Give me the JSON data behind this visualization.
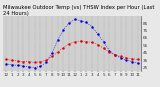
{
  "title": "Milwaukee Outdoor Temp (vs) THSW Index per Hour (Last 24 Hours)",
  "background_color": "#e8e8e8",
  "plot_bg_color": "#d0d0d0",
  "grid_color": "#888888",
  "x_hours": [
    0,
    1,
    2,
    3,
    4,
    5,
    6,
    7,
    8,
    9,
    10,
    11,
    12,
    13,
    14,
    15,
    16,
    17,
    18,
    19,
    20,
    21,
    22,
    23
  ],
  "x_labels": [
    "12",
    "1",
    "2",
    "3",
    "4",
    "5",
    "6",
    "7",
    "8",
    "9",
    "10",
    "11",
    "12",
    "1",
    "2",
    "3",
    "4",
    "5",
    "6",
    "7",
    "8",
    "9",
    "10",
    "11"
  ],
  "temp_outdoor": [
    36,
    35,
    34,
    33,
    33,
    32,
    33,
    35,
    40,
    46,
    52,
    57,
    60,
    61,
    60,
    59,
    56,
    51,
    46,
    42,
    40,
    38,
    37,
    36
  ],
  "thsw_index": [
    30,
    29,
    28,
    27,
    26,
    25,
    27,
    32,
    45,
    62,
    76,
    85,
    90,
    88,
    86,
    80,
    70,
    60,
    48,
    42,
    38,
    35,
    33,
    31
  ],
  "temp_color": "#dd0000",
  "thsw_color": "#0000dd",
  "ylim": [
    20,
    95
  ],
  "ytick_vals": [
    25,
    35,
    45,
    55,
    65,
    75,
    85
  ],
  "ytick_labels": [
    "25",
    "35",
    "45",
    "55",
    "65",
    "75",
    "85"
  ],
  "title_fontsize": 3.8,
  "tick_fontsize": 3.0,
  "line_width": 0.7,
  "marker_size": 1.5,
  "figsize": [
    1.6,
    0.87
  ],
  "dpi": 100
}
